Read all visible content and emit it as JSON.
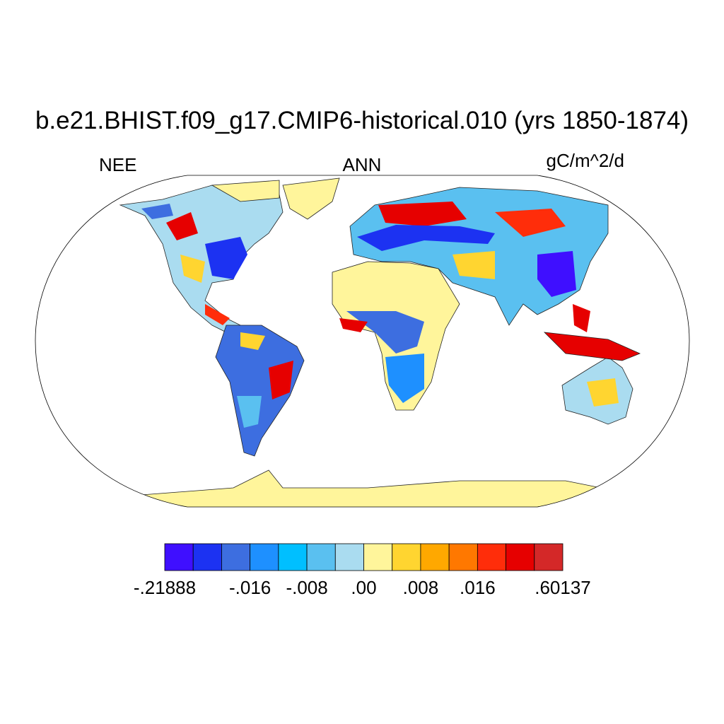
{
  "title": "b.e21.BHIST.f09_g17.CMIP6-historical.010 (yrs 1850-1874)",
  "left_label": "NEE",
  "center_label": "ANN",
  "right_label": "gC/m^2/d",
  "colorbar": {
    "colors": [
      "#3f0fff",
      "#1c32f2",
      "#3d6ee0",
      "#1e90ff",
      "#00bfff",
      "#5ac0f0",
      "#aadcf0",
      "#fff59b",
      "#ffd530",
      "#ffa800",
      "#ff7800",
      "#ff2d0a",
      "#e60000",
      "#d42828"
    ],
    "ticks": [
      {
        "value": -0.21888,
        "label": "-.21888"
      },
      {
        "value": -0.016,
        "label": "-.016"
      },
      {
        "value": -0.008,
        "label": "-.008"
      },
      {
        "value": 0,
        "label": ".00"
      },
      {
        "value": 0.008,
        "label": ".008"
      },
      {
        "value": 0.016,
        "label": ".016"
      },
      {
        "value": 0.60137,
        "label": ".60137"
      }
    ]
  }
}
